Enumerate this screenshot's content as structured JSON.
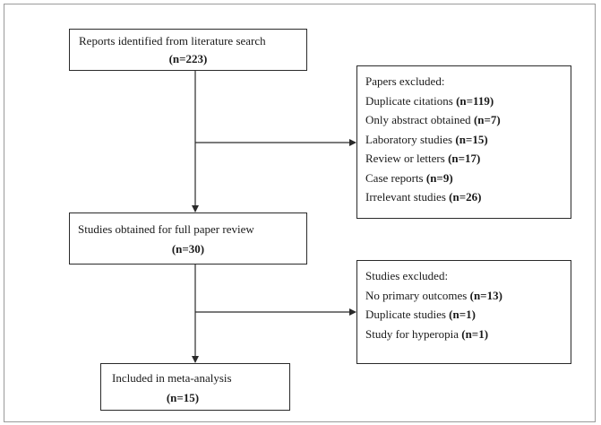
{
  "flow": {
    "search": {
      "label": "Reports identified from literature search",
      "count": "(n=223)"
    },
    "excluded_papers": {
      "title": "Papers excluded:",
      "items": [
        {
          "label": "Duplicate citations",
          "count": "(n=119)"
        },
        {
          "label": "Only abstract obtained",
          "count": "(n=7)"
        },
        {
          "label": "Laboratory studies",
          "count": "(n=15)"
        },
        {
          "label": "Review or letters",
          "count": "(n=17)"
        },
        {
          "label": "Case reports",
          "count": "(n=9)"
        },
        {
          "label": "Irrelevant studies",
          "count": "(n=26)"
        }
      ]
    },
    "full_review": {
      "label": "Studies obtained for full paper review",
      "count": "(n=30)"
    },
    "excluded_studies": {
      "title": "Studies excluded:",
      "items": [
        {
          "label": "No primary outcomes",
          "count": "(n=13)"
        },
        {
          "label": "Duplicate studies",
          "count": "(n=1)"
        },
        {
          "label": "Study for hyperopia",
          "count": "(n=1)"
        }
      ]
    },
    "included": {
      "label": "Included in meta-analysis",
      "count": "(n=15)"
    }
  },
  "colors": {
    "border": "#2a2a2a",
    "frame": "#9a9a9a",
    "text": "#1a1a1a"
  }
}
